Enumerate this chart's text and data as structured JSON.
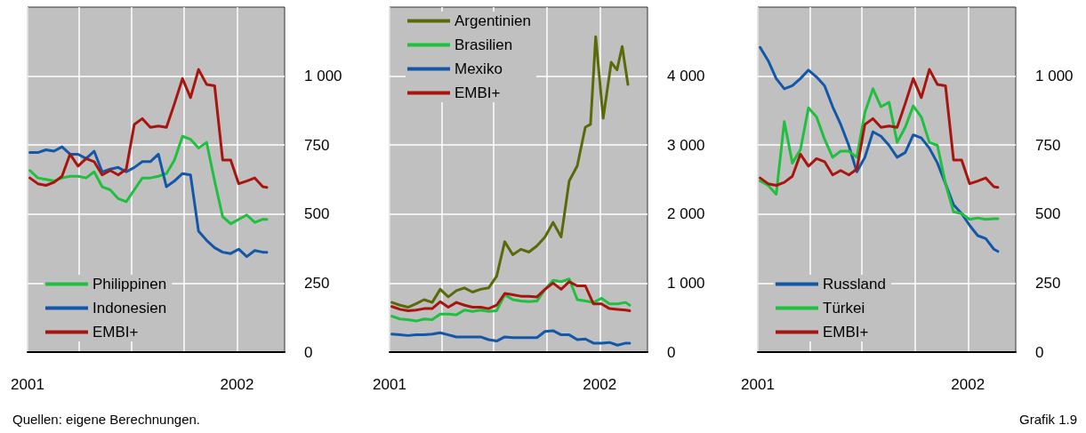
{
  "chart_data": [
    {
      "type": "line",
      "legend": "bottom left",
      "grid": true,
      "xlim": [
        "2001-01-01",
        "2002-03-25"
      ],
      "xticks": [
        {
          "value": "2001-01-01",
          "label": "2001"
        },
        {
          "value": "2001-04-01",
          "label": null
        },
        {
          "value": "2001-07-01",
          "label": null
        },
        {
          "value": "2001-10-01",
          "label": null
        },
        {
          "value": "2002-01-01",
          "label": "2002"
        }
      ],
      "ylim": [
        0,
        1250
      ],
      "yticks": [
        0,
        250,
        500,
        750,
        {
          "value": 1000,
          "label": "1 000"
        }
      ],
      "x": [
        "2001-01-05",
        "2001-01-19",
        "2001-02-02",
        "2001-02-16",
        "2001-03-02",
        "2001-03-16",
        "2001-03-30",
        "2001-04-13",
        "2001-04-27",
        "2001-05-11",
        "2001-05-25",
        "2001-06-08",
        "2001-06-22",
        "2001-07-06",
        "2001-07-20",
        "2001-08-03",
        "2001-08-17",
        "2001-08-31",
        "2001-09-14",
        "2001-09-28",
        "2001-10-12",
        "2001-10-26",
        "2001-11-09",
        "2001-11-23",
        "2001-12-07",
        "2001-12-21",
        "2002-01-04",
        "2002-01-18",
        "2002-02-01",
        "2002-02-15",
        "2002-02-22"
      ],
      "series": [
        {
          "name": "Philippinen",
          "color": "#1fbf3f",
          "values": [
            658,
            631,
            626,
            620,
            631,
            637,
            637,
            631,
            653,
            599,
            588,
            556,
            545,
            588,
            631,
            631,
            637,
            647,
            696,
            782,
            771,
            739,
            760,
            620,
            491,
            465,
            481,
            497,
            470,
            481,
            481
          ]
        },
        {
          "name": "Indonesien",
          "color": "#1357a8",
          "values": [
            723,
            723,
            733,
            728,
            744,
            717,
            717,
            701,
            728,
            653,
            663,
            669,
            653,
            669,
            690,
            690,
            717,
            599,
            620,
            647,
            642,
            438,
            405,
            378,
            362,
            357,
            373,
            346,
            368,
            362,
            362
          ]
        },
        {
          "name": "EMBI+",
          "color": "#a8150f",
          "values": [
            631,
            610,
            604,
            615,
            637,
            717,
            674,
            701,
            690,
            642,
            658,
            642,
            663,
            825,
            846,
            814,
            819,
            814,
            900,
            991,
            922,
            1024,
            970,
            965,
            696,
            696,
            610,
            620,
            631,
            599,
            597
          ]
        }
      ],
      "annotations": [
        "Quellen: eigene Berechnungen."
      ]
    },
    {
      "type": "line",
      "legend": "top left",
      "grid": true,
      "xlim": [
        "2001-01-01",
        "2002-03-25"
      ],
      "xticks": [
        {
          "value": "2001-01-01",
          "label": "2001"
        },
        {
          "value": "2001-04-01",
          "label": null
        },
        {
          "value": "2001-07-01",
          "label": null
        },
        {
          "value": "2001-10-01",
          "label": null
        },
        {
          "value": "2002-01-01",
          "label": "2002"
        }
      ],
      "ylim": [
        0,
        5000
      ],
      "yticks": [
        0,
        {
          "value": 1000,
          "label": "1 000"
        },
        {
          "value": 2000,
          "label": "2 000"
        },
        {
          "value": 3000,
          "label": "3 000"
        },
        {
          "value": 4000,
          "label": "4 000"
        }
      ],
      "x": [
        "2001-01-05",
        "2001-01-19",
        "2001-02-02",
        "2001-02-16",
        "2001-03-02",
        "2001-03-16",
        "2001-03-30",
        "2001-04-13",
        "2001-04-27",
        "2001-05-11",
        "2001-05-25",
        "2001-06-08",
        "2001-06-22",
        "2001-07-06",
        "2001-07-20",
        "2001-08-03",
        "2001-08-17",
        "2001-08-31",
        "2001-09-14",
        "2001-09-28",
        "2001-10-12",
        "2001-10-26",
        "2001-11-09",
        "2001-11-23",
        "2001-12-07",
        "2001-12-21",
        "2002-01-04",
        "2002-01-18",
        "2002-02-01",
        "2002-02-15",
        "2002-02-22"
      ],
      "series": [
        {
          "name": "Argentinien",
          "color": "#5a6a0a",
          "x": [
            "2001-01-05",
            "2001-01-19",
            "2001-02-02",
            "2001-02-16",
            "2001-03-02",
            "2001-03-16",
            "2001-03-30",
            "2001-04-13",
            "2001-04-27",
            "2001-05-11",
            "2001-05-25",
            "2001-06-08",
            "2001-06-22",
            "2001-07-06",
            "2001-07-20",
            "2001-08-03",
            "2001-08-17",
            "2001-08-31",
            "2001-09-14",
            "2001-09-28",
            "2001-10-12",
            "2001-10-26",
            "2001-11-09",
            "2001-11-23",
            "2001-12-07",
            "2001-12-16",
            "2001-12-25",
            "2002-01-07",
            "2002-01-21",
            "2002-01-31",
            "2002-02-09",
            "2002-02-19"
          ],
          "values": [
            720,
            680,
            650,
            700,
            760,
            720,
            910,
            800,
            890,
            930,
            870,
            910,
            930,
            1100,
            1600,
            1410,
            1490,
            1450,
            1540,
            1670,
            1880,
            1670,
            2480,
            2700,
            3260,
            3300,
            4570,
            3390,
            4200,
            4090,
            4430,
            3880
          ]
        },
        {
          "name": "Brasilien",
          "color": "#1fbf3f",
          "values": [
            520,
            480,
            470,
            450,
            480,
            470,
            550,
            550,
            540,
            610,
            590,
            610,
            590,
            600,
            830,
            760,
            740,
            730,
            740,
            910,
            1040,
            1020,
            1060,
            760,
            740,
            720,
            780,
            700,
            700,
            720,
            680
          ]
        },
        {
          "name": "Mexiko",
          "color": "#1357a8",
          "values": [
            260,
            250,
            240,
            250,
            250,
            260,
            280,
            250,
            220,
            220,
            220,
            220,
            180,
            160,
            220,
            210,
            210,
            210,
            210,
            300,
            310,
            250,
            250,
            180,
            190,
            130,
            130,
            140,
            100,
            130,
            130
          ]
        },
        {
          "name": "EMBI+",
          "color": "#a8150f",
          "values": [
            660,
            620,
            600,
            610,
            630,
            630,
            730,
            650,
            720,
            680,
            650,
            650,
            630,
            680,
            850,
            830,
            810,
            810,
            800,
            910,
            1000,
            910,
            1020,
            960,
            960,
            700,
            700,
            630,
            620,
            610,
            600
          ]
        }
      ]
    },
    {
      "type": "line",
      "legend": "bottom left",
      "grid": true,
      "xlim": [
        "2001-01-01",
        "2002-03-25"
      ],
      "xticks": [
        {
          "value": "2001-01-01",
          "label": "2001"
        },
        {
          "value": "2001-04-01",
          "label": null
        },
        {
          "value": "2001-07-01",
          "label": null
        },
        {
          "value": "2001-10-01",
          "label": null
        },
        {
          "value": "2002-01-01",
          "label": "2002"
        }
      ],
      "ylim": [
        0,
        1250
      ],
      "yticks": [
        0,
        250,
        500,
        750,
        {
          "value": 1000,
          "label": "1 000"
        }
      ],
      "x": [
        "2001-01-05",
        "2001-01-19",
        "2001-02-02",
        "2001-02-16",
        "2001-03-02",
        "2001-03-16",
        "2001-03-30",
        "2001-04-13",
        "2001-04-27",
        "2001-05-11",
        "2001-05-25",
        "2001-06-08",
        "2001-06-22",
        "2001-07-06",
        "2001-07-20",
        "2001-08-03",
        "2001-08-17",
        "2001-08-31",
        "2001-09-14",
        "2001-09-28",
        "2001-10-12",
        "2001-10-26",
        "2001-11-09",
        "2001-11-23",
        "2001-12-07",
        "2001-12-21",
        "2002-01-04",
        "2002-01-18",
        "2002-02-01",
        "2002-02-15",
        "2002-02-22"
      ],
      "series": [
        {
          "name": "Russland",
          "color": "#1357a8",
          "values": [
            1104,
            1056,
            991,
            954,
            965,
            991,
            1022,
            997,
            965,
            889,
            825,
            749,
            653,
            706,
            798,
            782,
            749,
            706,
            723,
            787,
            776,
            739,
            685,
            610,
            534,
            502,
            459,
            422,
            411,
            373,
            365
          ]
        },
        {
          "name": "Türkei",
          "color": "#1fbf3f",
          "values": [
            620,
            604,
            572,
            835,
            685,
            733,
            885,
            852,
            771,
            706,
            728,
            728,
            706,
            868,
            954,
            889,
            905,
            760,
            814,
            892,
            852,
            760,
            749,
            610,
            508,
            502,
            481,
            486,
            481,
            483,
            483
          ]
        },
        {
          "name": "EMBI+",
          "color": "#a8150f",
          "values": [
            631,
            610,
            604,
            615,
            637,
            717,
            674,
            701,
            690,
            642,
            658,
            642,
            663,
            825,
            846,
            814,
            819,
            814,
            900,
            991,
            922,
            1024,
            970,
            965,
            696,
            696,
            610,
            620,
            631,
            599,
            597
          ]
        }
      ],
      "annotations": [
        "Grafik 1.9"
      ]
    }
  ]
}
